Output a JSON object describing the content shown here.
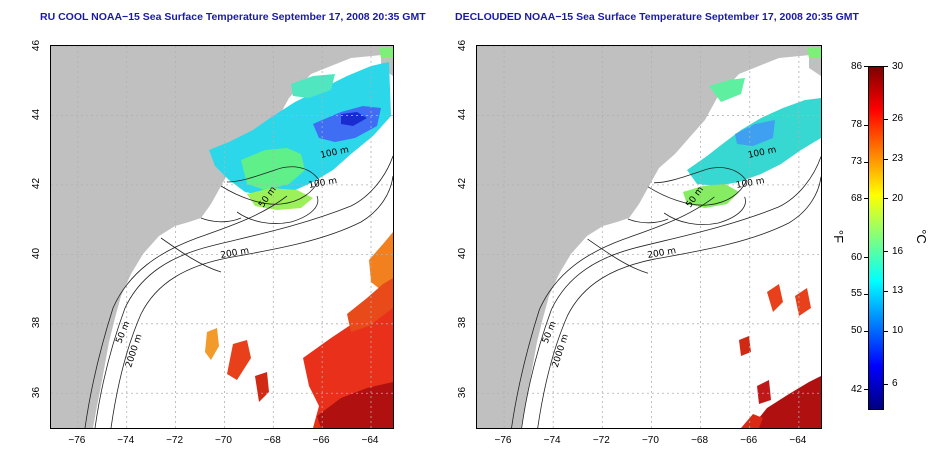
{
  "left_map": {
    "title": "RU COOL NOAA−15 Sea Surface Temperature September 17, 2008 20:35 GMT",
    "contour_labels": [
      "100 m",
      "100 m",
      "50 m",
      "200 m",
      "50 m",
      "2000 m"
    ]
  },
  "right_map": {
    "title": "DECLOUDED NOAA−15 Sea Surface Temperature September 17, 2008 20:35 GMT",
    "contour_labels": [
      "100 m",
      "100 m",
      "50 m",
      "200 m",
      "50 m",
      "2000 m"
    ]
  },
  "axes": {
    "lon_ticks": [
      "−76",
      "−74",
      "−72",
      "−70",
      "−68",
      "−66",
      "−64"
    ],
    "lon_values": [
      -76,
      -74,
      -72,
      -70,
      -68,
      -66,
      -64
    ],
    "lon_range": [
      -77.1,
      -63.1
    ],
    "lat_ticks": [
      "36",
      "38",
      "40",
      "42",
      "44",
      "46"
    ],
    "lat_values": [
      36,
      38,
      40,
      42,
      44,
      46
    ],
    "lat_range": [
      35.0,
      46.0
    ]
  },
  "colorbar": {
    "celsius_ticks": [
      "30",
      "26",
      "23",
      "20",
      "16",
      "13",
      "10",
      "6"
    ],
    "celsius_values": [
      30,
      26,
      23,
      20,
      16,
      13,
      10,
      6
    ],
    "fahrenheit_ticks": [
      "86",
      "78",
      "73",
      "68",
      "60",
      "55",
      "50",
      "42"
    ],
    "fahrenheit_values": [
      86,
      78,
      73,
      68,
      60,
      55,
      50,
      42
    ],
    "range_c": [
      4,
      30
    ],
    "fahrenheit_unit": "°F",
    "celsius_unit": "°C",
    "colors": [
      "#00007f",
      "#0000ff",
      "#007fff",
      "#00ffff",
      "#7fff7f",
      "#ffff00",
      "#ff7f00",
      "#ff0000",
      "#7f0000"
    ]
  },
  "colors": {
    "land": "#c0c0c0",
    "title": "#1a1aa8",
    "grid": "#b0b0b0",
    "contour": "#222222"
  }
}
